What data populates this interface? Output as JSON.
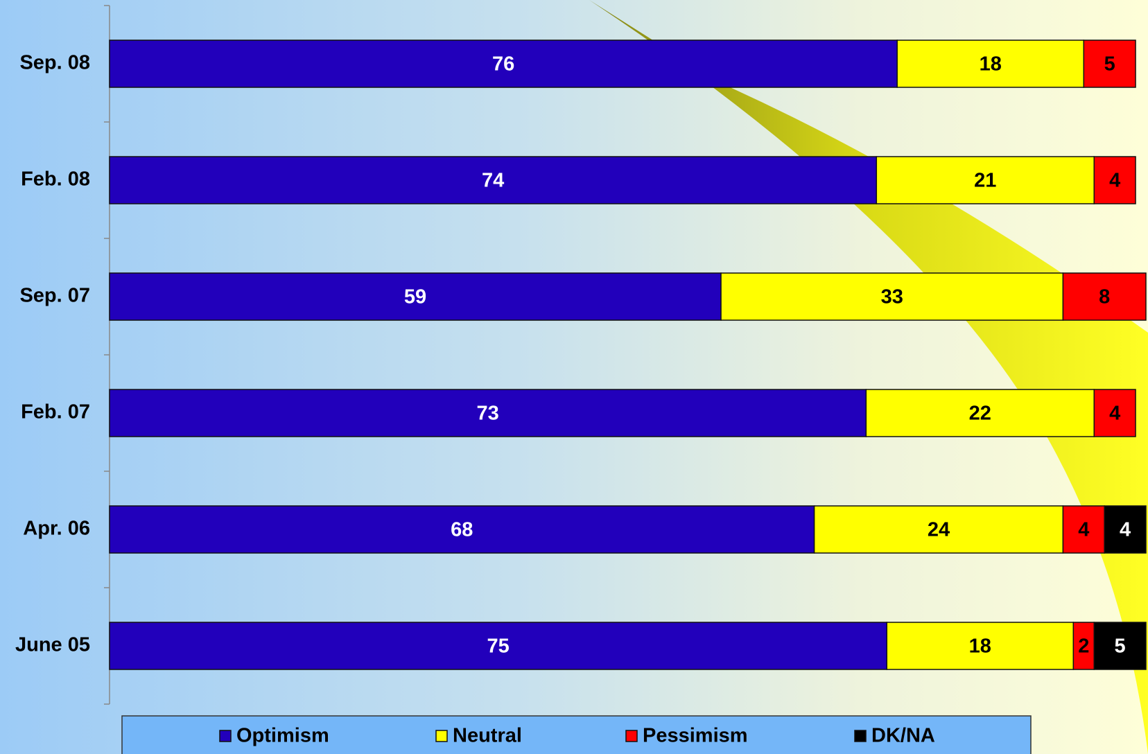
{
  "chart_data": {
    "type": "stacked-bar-horizontal",
    "categories": [
      "Sep. 08",
      "Feb. 08",
      "Sep. 07",
      "Feb. 07",
      "Apr. 06",
      "June 05"
    ],
    "series": [
      {
        "name": "Optimism",
        "color": "#2200bb",
        "values": [
          76,
          74,
          59,
          73,
          68,
          75
        ]
      },
      {
        "name": "Neutral",
        "color": "#ffff00",
        "values": [
          18,
          21,
          33,
          22,
          24,
          18
        ]
      },
      {
        "name": "Pessimism",
        "color": "#ff0000",
        "values": [
          5,
          4,
          8,
          4,
          4,
          2
        ]
      },
      {
        "name": "DK/NA",
        "color": "#000000",
        "values": [
          null,
          null,
          null,
          null,
          4,
          5
        ]
      }
    ],
    "xlim": [
      0,
      100
    ],
    "legend": "bottom"
  }
}
